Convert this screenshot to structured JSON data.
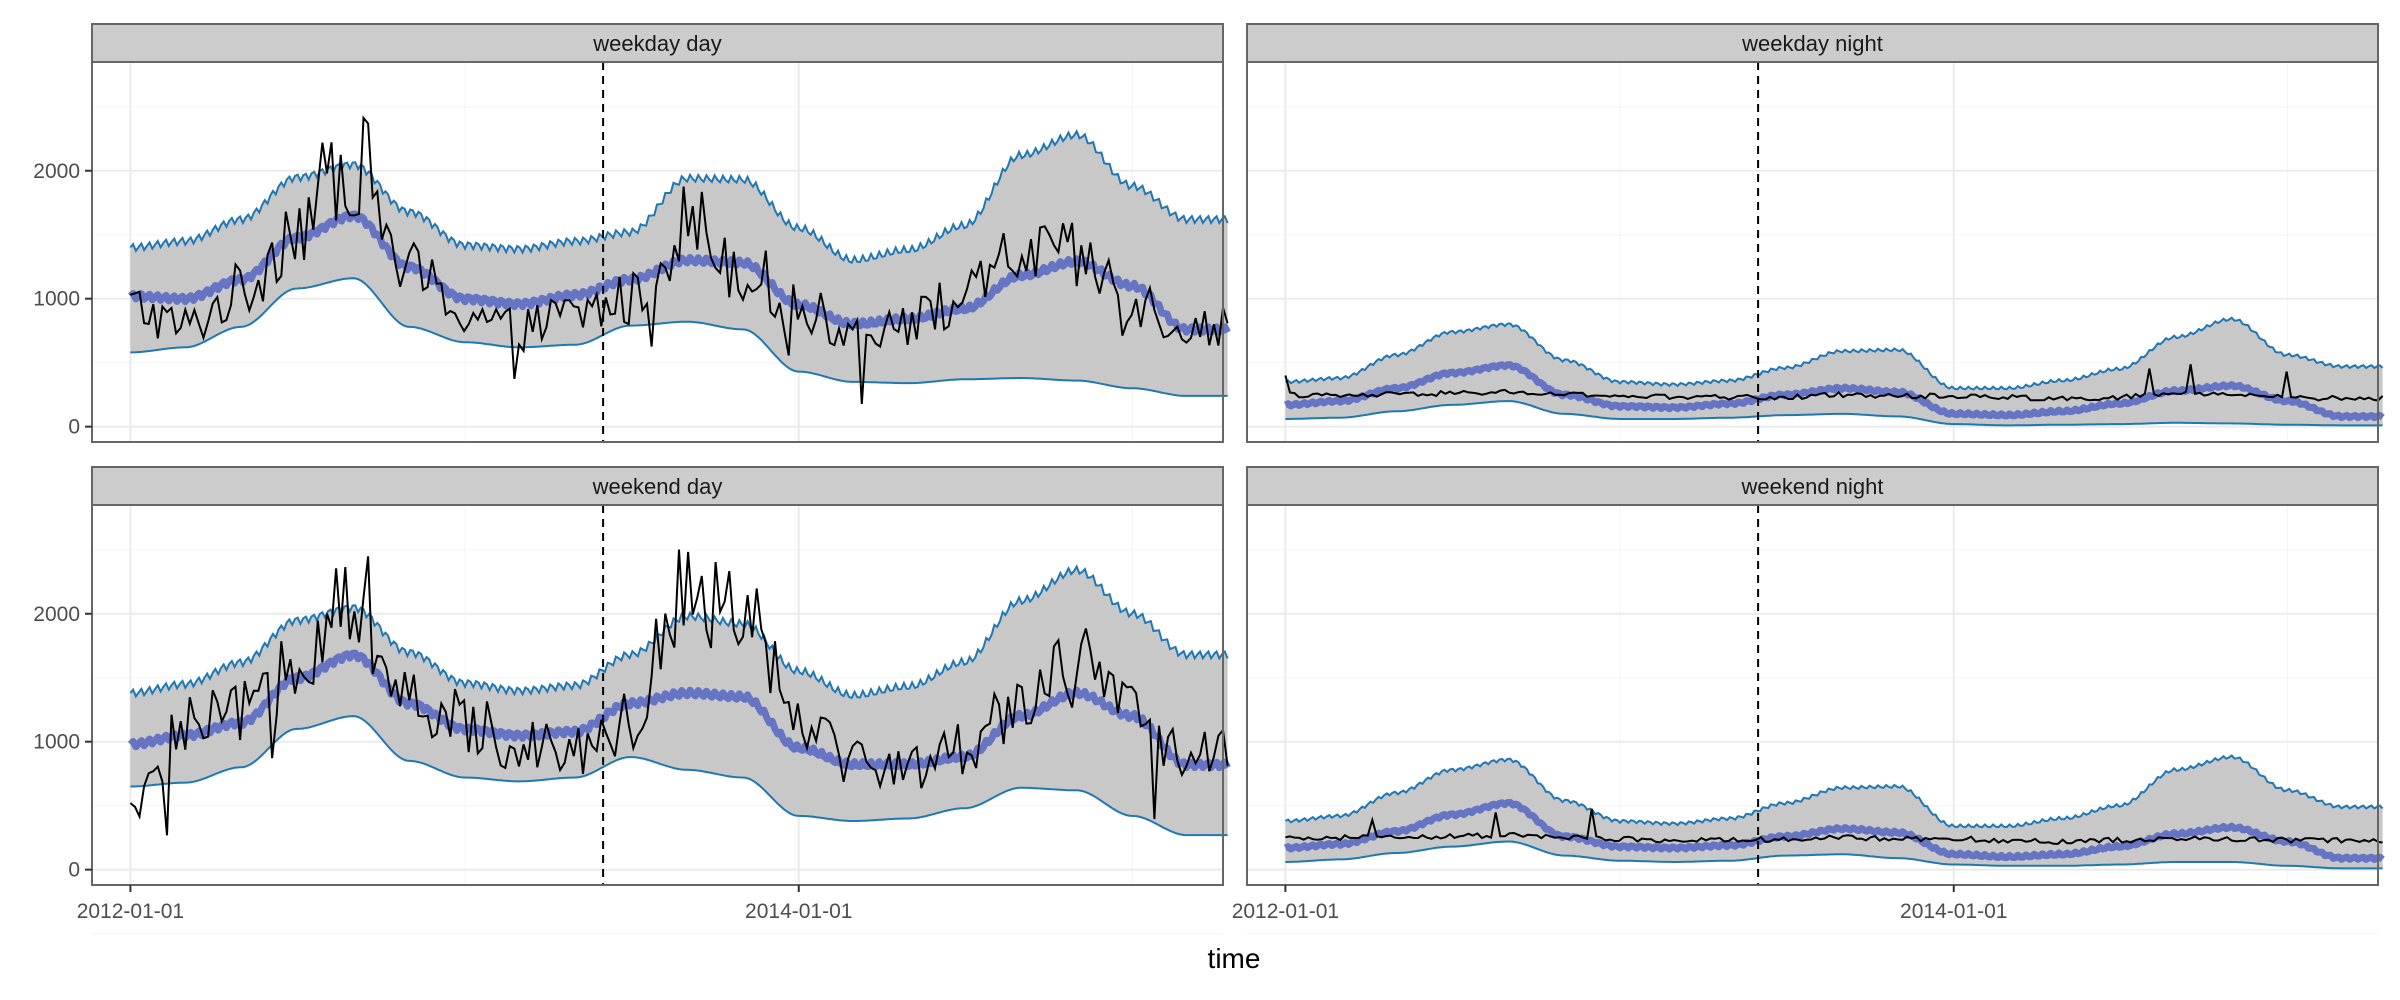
{
  "chart_data": {
    "type": "line",
    "xlabel": "time",
    "ylabel": "",
    "x_range": [
      "2011-11-20",
      "2015-04-10"
    ],
    "ylim": [
      -120,
      2850
    ],
    "y_ticks": [
      0,
      1000,
      2000
    ],
    "y_tick_labels": [
      "0",
      "1000",
      "2000"
    ],
    "x_ticks": [
      "2012-01-01",
      "2014-01-01"
    ],
    "x_tick_labels": [
      "2012-01-01",
      "2014-01-01"
    ],
    "cutoff_date": "2013-06-01",
    "grid": true,
    "legend": "none",
    "colors": {
      "strip_fill": "#cccccc",
      "ribbon_fill": "#c8c8c8",
      "ribbon_edge": "#1f77b4",
      "trend": "#6674c4",
      "observed": "#000000",
      "cutoff": "#000000",
      "grid": "#ebebeb"
    },
    "panels": [
      {
        "title": "weekday day",
        "row": 0,
        "col": 0,
        "dates": [
          "2012-01-01",
          "2012-03-01",
          "2012-05-01",
          "2012-07-01",
          "2012-09-01",
          "2012-11-01",
          "2013-01-01",
          "2013-03-01",
          "2013-05-01",
          "2013-07-01",
          "2013-09-01",
          "2013-11-01",
          "2014-01-01",
          "2014-03-01",
          "2014-05-01",
          "2014-07-01",
          "2014-09-01",
          "2014-11-01",
          "2015-01-01",
          "2015-03-01"
        ],
        "trend": [
          1020,
          1000,
          1150,
          1480,
          1650,
          1250,
          1000,
          960,
          1030,
          1150,
          1300,
          1280,
          950,
          800,
          840,
          920,
          1180,
          1290,
          1100,
          760
        ],
        "lower": [
          580,
          620,
          780,
          1080,
          1160,
          780,
          660,
          620,
          640,
          790,
          820,
          760,
          430,
          350,
          340,
          370,
          380,
          360,
          300,
          240
        ],
        "upper": [
          1400,
          1450,
          1620,
          1950,
          2050,
          1680,
          1420,
          1390,
          1450,
          1520,
          1940,
          1930,
          1550,
          1300,
          1380,
          1570,
          2120,
          2280,
          1880,
          1620
        ],
        "observed": [
          940,
          780,
          1050,
          1600,
          2100,
          1200,
          900,
          760,
          880,
          990,
          1600,
          1250,
          920,
          750,
          820,
          1000,
          1350,
          1300,
          1000,
          780
        ]
      },
      {
        "title": "weekday night",
        "row": 0,
        "col": 1,
        "dates": [
          "2012-01-01",
          "2012-03-01",
          "2012-05-01",
          "2012-07-01",
          "2012-09-01",
          "2012-11-01",
          "2013-01-01",
          "2013-03-01",
          "2013-05-01",
          "2013-07-01",
          "2013-09-01",
          "2013-11-01",
          "2014-01-01",
          "2014-03-01",
          "2014-05-01",
          "2014-07-01",
          "2014-09-01",
          "2014-11-01",
          "2015-01-01",
          "2015-03-01"
        ],
        "trend": [
          170,
          200,
          300,
          420,
          480,
          250,
          160,
          150,
          180,
          250,
          300,
          270,
          100,
          90,
          120,
          180,
          280,
          320,
          200,
          80
        ],
        "lower": [
          60,
          70,
          120,
          170,
          200,
          100,
          60,
          60,
          70,
          90,
          100,
          80,
          20,
          10,
          15,
          20,
          30,
          25,
          15,
          10
        ],
        "upper": [
          350,
          380,
          560,
          740,
          800,
          520,
          350,
          330,
          360,
          460,
          590,
          600,
          300,
          300,
          360,
          450,
          700,
          840,
          560,
          470
        ],
        "observed": [
          250,
          240,
          250,
          260,
          270,
          250,
          240,
          230,
          230,
          230,
          250,
          240,
          240,
          230,
          220,
          230,
          260,
          250,
          230,
          220
        ]
      },
      {
        "title": "weekend day",
        "row": 1,
        "col": 0,
        "dates": [
          "2012-01-01",
          "2012-03-01",
          "2012-05-01",
          "2012-07-01",
          "2012-09-01",
          "2012-11-01",
          "2013-01-01",
          "2013-03-01",
          "2013-05-01",
          "2013-07-01",
          "2013-09-01",
          "2013-11-01",
          "2014-01-01",
          "2014-03-01",
          "2014-05-01",
          "2014-07-01",
          "2014-09-01",
          "2014-11-01",
          "2015-01-01",
          "2015-03-01"
        ],
        "trend": [
          980,
          1050,
          1150,
          1500,
          1680,
          1300,
          1100,
          1050,
          1080,
          1300,
          1380,
          1350,
          950,
          820,
          820,
          880,
          1200,
          1380,
          1200,
          820
        ],
        "lower": [
          650,
          680,
          800,
          1100,
          1200,
          850,
          720,
          690,
          720,
          880,
          780,
          720,
          420,
          380,
          400,
          480,
          640,
          620,
          420,
          270
        ],
        "upper": [
          1380,
          1450,
          1620,
          1950,
          2050,
          1700,
          1460,
          1400,
          1440,
          1680,
          1980,
          1920,
          1550,
          1360,
          1430,
          1620,
          2100,
          2340,
          2000,
          1680
        ],
        "observed": [
          460,
          1100,
          1200,
          1700,
          2200,
          1250,
          1150,
          1000,
          950,
          1150,
          2300,
          2100,
          1250,
          850,
          800,
          950,
          1350,
          1600,
          1200,
          900
        ]
      },
      {
        "title": "weekend night",
        "row": 1,
        "col": 1,
        "dates": [
          "2012-01-01",
          "2012-03-01",
          "2012-05-01",
          "2012-07-01",
          "2012-09-01",
          "2012-11-01",
          "2013-01-01",
          "2013-03-01",
          "2013-05-01",
          "2013-07-01",
          "2013-09-01",
          "2013-11-01",
          "2014-01-01",
          "2014-03-01",
          "2014-05-01",
          "2014-07-01",
          "2014-09-01",
          "2014-11-01",
          "2015-01-01",
          "2015-03-01"
        ],
        "trend": [
          170,
          200,
          300,
          430,
          520,
          260,
          180,
          170,
          190,
          260,
          320,
          290,
          120,
          100,
          120,
          180,
          280,
          330,
          220,
          90
        ],
        "lower": [
          60,
          80,
          130,
          180,
          220,
          110,
          70,
          60,
          70,
          110,
          120,
          90,
          40,
          30,
          30,
          40,
          60,
          60,
          30,
          10
        ],
        "upper": [
          380,
          420,
          600,
          780,
          860,
          540,
          380,
          360,
          400,
          520,
          640,
          650,
          340,
          340,
          400,
          500,
          780,
          880,
          620,
          490
        ],
        "observed": [
          240,
          250,
          250,
          260,
          270,
          250,
          240,
          230,
          230,
          240,
          250,
          240,
          240,
          230,
          220,
          230,
          240,
          240,
          230,
          230
        ]
      }
    ]
  }
}
